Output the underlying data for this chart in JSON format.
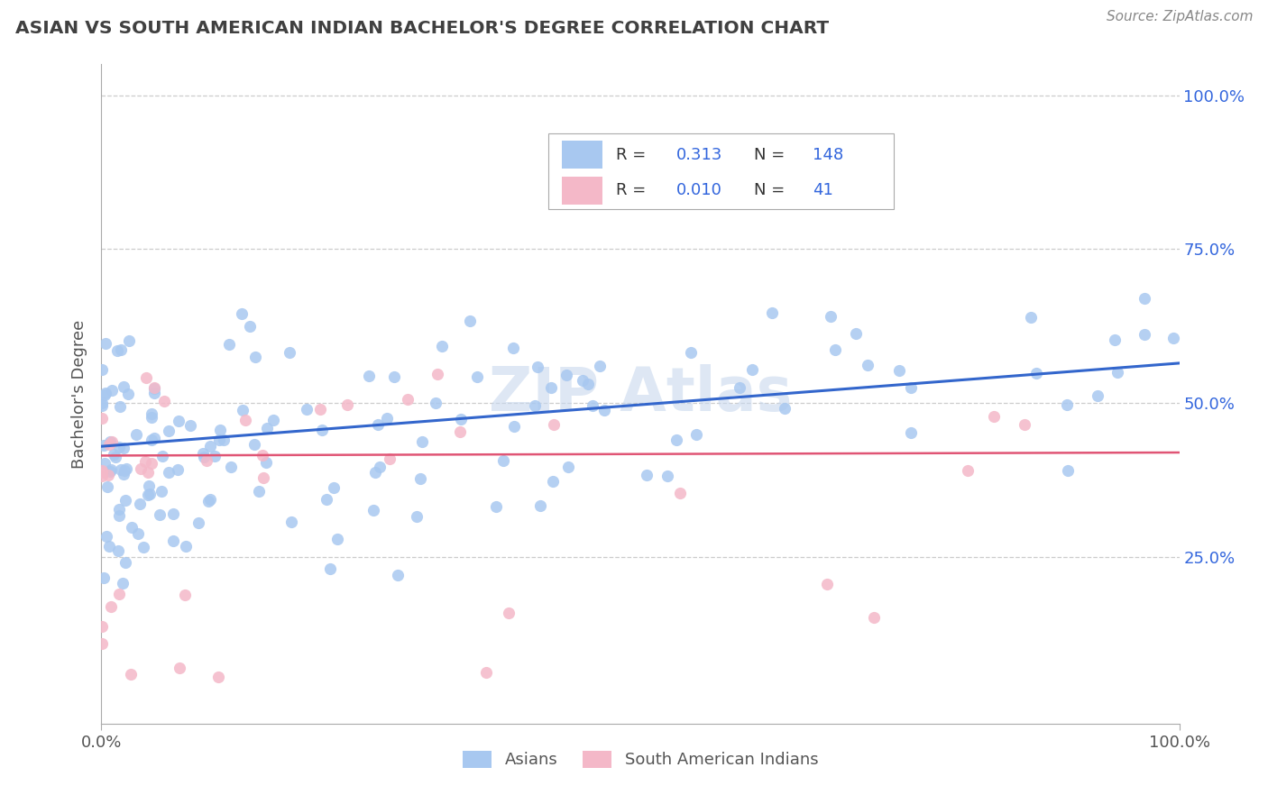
{
  "title": "ASIAN VS SOUTH AMERICAN INDIAN BACHELOR'S DEGREE CORRELATION CHART",
  "source_text": "Source: ZipAtlas.com",
  "ylabel": "Bachelor's Degree",
  "watermark": "ZIPAtlas",
  "asian_color": "#a8c8f0",
  "sai_color": "#f4b8c8",
  "asian_line_color": "#3366cc",
  "sai_line_color": "#e05575",
  "background_color": "#ffffff",
  "grid_color": "#cccccc",
  "title_color": "#404040",
  "legend_value_color": "#3366dd",
  "asian_R": 0.313,
  "asian_N": 148,
  "sai_R": 0.01,
  "sai_N": 41,
  "legend_asian_label": "Asians",
  "legend_sai_label": "South American Indians",
  "ytick_values": [
    0.25,
    0.5,
    0.75,
    1.0
  ],
  "ytick_labels": [
    "25.0%",
    "50.0%",
    "75.0%",
    "100.0%"
  ],
  "xlim": [
    0.0,
    1.0
  ],
  "ylim": [
    -0.02,
    1.05
  ]
}
